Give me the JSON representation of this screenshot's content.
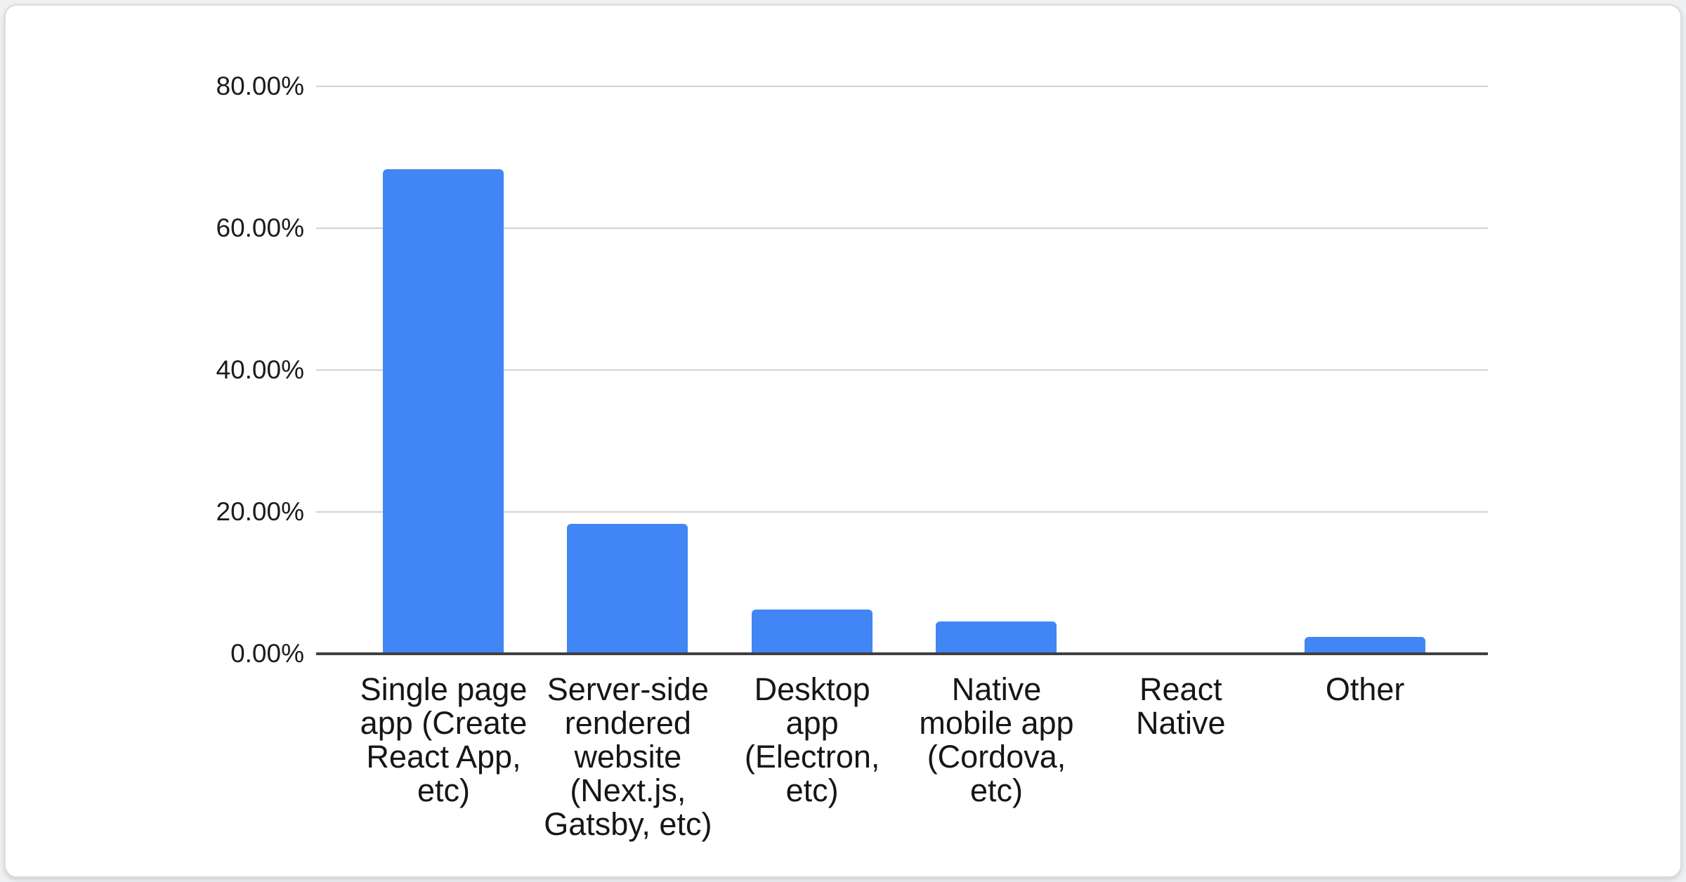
{
  "chart_data": {
    "type": "bar",
    "title": "",
    "xlabel": "",
    "ylabel": "",
    "categories": [
      "Single page app (Create React App, etc)",
      "Server-side rendered website (Next.js, Gatsby, etc)",
      "Desktop app (Electron, etc)",
      "Native mobile app (Cordova, etc)",
      "React Native",
      "Other"
    ],
    "category_label_lines": [
      [
        "Single page",
        "app (Create",
        "React App,",
        "etc)"
      ],
      [
        "Server-side",
        "rendered",
        "website",
        "(Next.js,",
        "Gatsby, etc)"
      ],
      [
        "Desktop",
        "app",
        "(Electron,",
        "etc)"
      ],
      [
        "Native",
        "mobile app",
        "(Cordova,",
        "etc)"
      ],
      [
        "React",
        "Native"
      ],
      [
        "Other"
      ]
    ],
    "values": [
      68.3,
      18.3,
      6.2,
      4.6,
      0,
      2.4
    ],
    "unit": "%",
    "y_ticks": [
      {
        "value": 80,
        "label": "80.00%"
      },
      {
        "value": 60,
        "label": "60.00%"
      },
      {
        "value": 40,
        "label": "40.00%"
      },
      {
        "value": 20,
        "label": "20.00%"
      },
      {
        "value": 0,
        "label": "0.00%"
      }
    ],
    "ylim": [
      0,
      80
    ],
    "grid": true,
    "legend": "none",
    "colors": {
      "bar": "#4285f4",
      "gridline": "#d2d2d2",
      "axis": "#404040",
      "tick_label": "#1c1c1c",
      "category_label": "#161616",
      "card_background": "#ffffff",
      "card_border": "#d9dcdf",
      "page_background": "#eef0f2"
    }
  }
}
